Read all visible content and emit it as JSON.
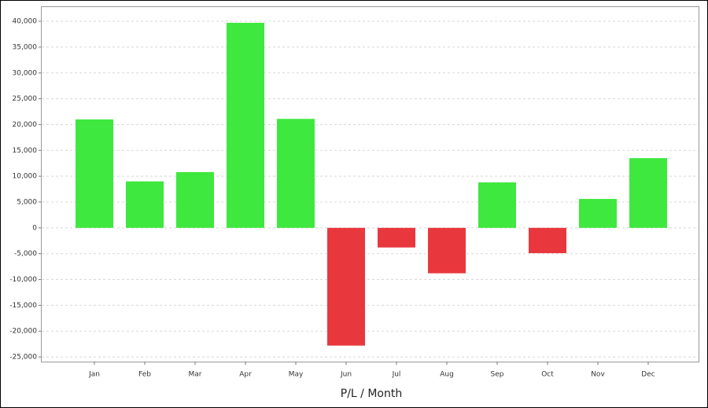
{
  "chart_data": {
    "type": "bar",
    "x_label": "P/L / Month",
    "categories": [
      "Jan",
      "Feb",
      "Mar",
      "Apr",
      "May",
      "Jun",
      "Jul",
      "Aug",
      "Sep",
      "Oct",
      "Nov",
      "Dec"
    ],
    "values": [
      21000,
      9000,
      10800,
      39700,
      21100,
      -22800,
      -3800,
      -8800,
      8800,
      -4900,
      5600,
      13500
    ],
    "positive_color": "#3ee83e",
    "negative_color": "#e8383e",
    "ylim": [
      -25900,
      42900
    ],
    "yticks": [
      {
        "value": -25000,
        "label": "-25,000"
      },
      {
        "value": -20000,
        "label": "-20,000"
      },
      {
        "value": -15000,
        "label": "-15,000"
      },
      {
        "value": -10000,
        "label": "-10,000"
      },
      {
        "value": -5000,
        "label": "-5,000"
      },
      0,
      {
        "value": 5000,
        "label": "5,000"
      },
      {
        "value": 10000,
        "label": "10,000"
      },
      {
        "value": 15000,
        "label": "15,000"
      },
      {
        "value": 20000,
        "label": "20,000"
      },
      {
        "value": 25000,
        "label": "25,000"
      },
      {
        "value": 30000,
        "label": "30,000"
      },
      {
        "value": 35000,
        "label": "35,000"
      },
      {
        "value": 40000,
        "label": "40,000"
      }
    ],
    "grid": true
  }
}
